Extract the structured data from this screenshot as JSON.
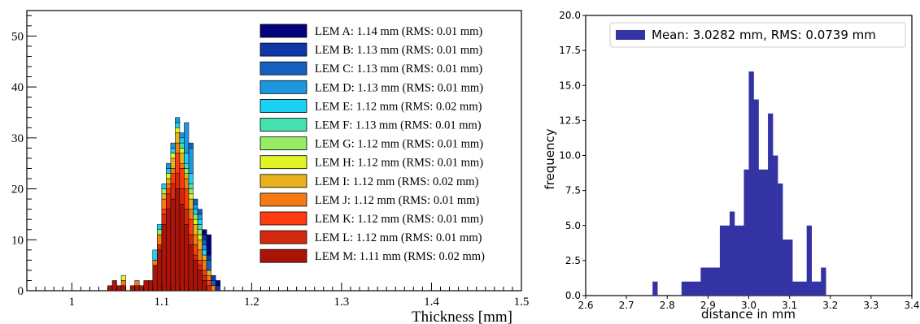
{
  "chart_data": [
    {
      "type": "stacked-histogram",
      "xlabel": "Thickness [mm]",
      "ylabel": "",
      "xlim": [
        0.95,
        1.5
      ],
      "ylim": [
        0,
        55
      ],
      "xticks": [
        1,
        1.1,
        1.2,
        1.3,
        1.4,
        1.5
      ],
      "yticks": [
        0,
        10,
        20,
        30,
        40,
        50
      ],
      "legend": "top-right",
      "bin_width": 0.005,
      "bin_starts": [
        1.04,
        1.045,
        1.05,
        1.055,
        1.06,
        1.065,
        1.07,
        1.075,
        1.08,
        1.085,
        1.09,
        1.095,
        1.1,
        1.105,
        1.11,
        1.115,
        1.12,
        1.125,
        1.13,
        1.135,
        1.14,
        1.145,
        1.15,
        1.155,
        1.16
      ],
      "series": [
        {
          "name": "LEM M: 1.11 mm (RMS: 0.02 mm)",
          "color": "#aa1408",
          "values": [
            1,
            2,
            1,
            1,
            0,
            1,
            1,
            1,
            2,
            2,
            5,
            8,
            13,
            16,
            18,
            20,
            17,
            13,
            9,
            6,
            4,
            2,
            0,
            0,
            0
          ]
        },
        {
          "name": "LEM L: 1.12 mm (RMS: 0.01 mm)",
          "color": "#d32a0e",
          "values": [
            0,
            0,
            0,
            0,
            0,
            0,
            0,
            0,
            0,
            0,
            0,
            1,
            2,
            3,
            3,
            3,
            3,
            3,
            2,
            1,
            1,
            1,
            1,
            0,
            0
          ]
        },
        {
          "name": "LEM K: 1.12 mm (RMS: 0.01 mm)",
          "color": "#ff3b10",
          "values": [
            0,
            0,
            0,
            0,
            0,
            0,
            0,
            0,
            0,
            0,
            0,
            0,
            1,
            1,
            2,
            4,
            4,
            4,
            3,
            2,
            1,
            1,
            1,
            0,
            0
          ]
        },
        {
          "name": "LEM J: 1.12 mm (RMS: 0.01 mm)",
          "color": "#f67a12",
          "values": [
            0,
            0,
            0,
            1,
            0,
            0,
            1,
            0,
            0,
            0,
            1,
            2,
            2,
            1,
            1,
            2,
            1,
            2,
            2,
            2,
            2,
            2,
            1,
            1,
            0
          ]
        },
        {
          "name": "LEM I: 1.12 mm (RMS: 0.02 mm)",
          "color": "#e8b21c",
          "values": [
            0,
            0,
            0,
            0,
            0,
            0,
            0,
            0,
            0,
            0,
            0,
            0,
            1,
            1,
            2,
            2,
            2,
            1,
            2,
            2,
            2,
            1,
            1,
            0,
            0
          ]
        },
        {
          "name": "LEM H: 1.12 mm (RMS: 0.01 mm)",
          "color": "#e0f426",
          "values": [
            0,
            0,
            0,
            1,
            0,
            0,
            0,
            0,
            0,
            0,
            0,
            0,
            0,
            1,
            1,
            1,
            1,
            0,
            1,
            1,
            1,
            0,
            0,
            0,
            0
          ]
        },
        {
          "name": "LEM G: 1.12 mm (RMS: 0.01 mm)",
          "color": "#96ec62",
          "values": [
            0,
            0,
            0,
            0,
            0,
            0,
            0,
            0,
            0,
            0,
            0,
            1,
            1,
            0,
            0,
            0,
            0,
            1,
            1,
            1,
            1,
            0,
            0,
            0,
            0
          ]
        },
        {
          "name": "LEM F: 1.13 mm (RMS: 0.01 mm)",
          "color": "#46e1b1",
          "values": [
            0,
            0,
            0,
            0,
            0,
            0,
            0,
            0,
            0,
            0,
            0,
            0,
            0,
            0,
            0,
            0,
            1,
            1,
            1,
            0,
            1,
            0,
            0,
            0,
            0
          ]
        },
        {
          "name": "LEM E: 1.12 mm (RMS: 0.02 mm)",
          "color": "#1bd1f2",
          "values": [
            0,
            0,
            0,
            0,
            0,
            0,
            0,
            0,
            0,
            0,
            2,
            1,
            1,
            1,
            1,
            1,
            1,
            2,
            2,
            1,
            1,
            1,
            0,
            0,
            0
          ]
        },
        {
          "name": "LEM D: 1.13 mm (RMS: 0.01 mm)",
          "color": "#1c97e0",
          "values": [
            0,
            0,
            0,
            0,
            0,
            0,
            0,
            0,
            0,
            0,
            0,
            0,
            0,
            1,
            1,
            1,
            1,
            6,
            5,
            1,
            1,
            1,
            0,
            0,
            0
          ]
        },
        {
          "name": "LEM C: 1.13 mm (RMS: 0.01 mm)",
          "color": "#1461c0",
          "values": [
            0,
            0,
            0,
            0,
            0,
            0,
            0,
            0,
            0,
            0,
            0,
            0,
            0,
            0,
            0,
            0,
            0,
            0,
            1,
            1,
            1,
            1,
            2,
            1,
            0
          ]
        },
        {
          "name": "LEM B: 1.13 mm (RMS: 0.01 mm)",
          "color": "#0d39a8",
          "values": [
            0,
            0,
            0,
            0,
            0,
            0,
            0,
            0,
            0,
            0,
            0,
            0,
            0,
            0,
            0,
            0,
            0,
            0,
            0,
            0,
            0,
            1,
            1,
            1,
            1
          ]
        },
        {
          "name": "LEM A: 1.14 mm (RMS: 0.01 mm)",
          "color": "#03037e",
          "values": [
            0,
            0,
            0,
            0,
            0,
            0,
            0,
            0,
            0,
            0,
            0,
            0,
            0,
            0,
            0,
            0,
            0,
            0,
            0,
            0,
            0,
            1,
            4,
            0,
            1
          ]
        }
      ]
    },
    {
      "type": "histogram",
      "xlabel": "distance in mm",
      "ylabel": "frequency",
      "xlim": [
        2.6,
        3.4
      ],
      "ylim": [
        0,
        20
      ],
      "xticks": [
        "2.6",
        "2.7",
        "2.8",
        "2.9",
        "3.0",
        "3.1",
        "3.2",
        "3.3",
        "3.4"
      ],
      "yticks": [
        "0.0",
        "2.5",
        "5.0",
        "7.5",
        "10.0",
        "12.5",
        "15.0",
        "17.5",
        "20.0"
      ],
      "legend": "top-right",
      "bin_width": 0.0118,
      "bin_starts": [
        2.764,
        2.776,
        2.788,
        2.8,
        2.811,
        2.823,
        2.835,
        2.847,
        2.859,
        2.87,
        2.882,
        2.894,
        2.906,
        2.918,
        2.929,
        2.941,
        2.953,
        2.965,
        2.977,
        2.988,
        3.0,
        3.012,
        3.024,
        3.036,
        3.047,
        3.059,
        3.071,
        3.083,
        3.095,
        3.106,
        3.118,
        3.13,
        3.142,
        3.154,
        3.165,
        3.177,
        3.189
      ],
      "series": [
        {
          "name": "Mean: 3.0282 mm, RMS: 0.0739 mm",
          "color": "#3333a3",
          "values": [
            1,
            0,
            0,
            0,
            0,
            0,
            1,
            1,
            1,
            1,
            2,
            2,
            2,
            2,
            5,
            5,
            6,
            5,
            5,
            9,
            16,
            14,
            9,
            9,
            13,
            10,
            8,
            4,
            4,
            1,
            1,
            1,
            5,
            1,
            1,
            2,
            0
          ]
        }
      ]
    }
  ]
}
